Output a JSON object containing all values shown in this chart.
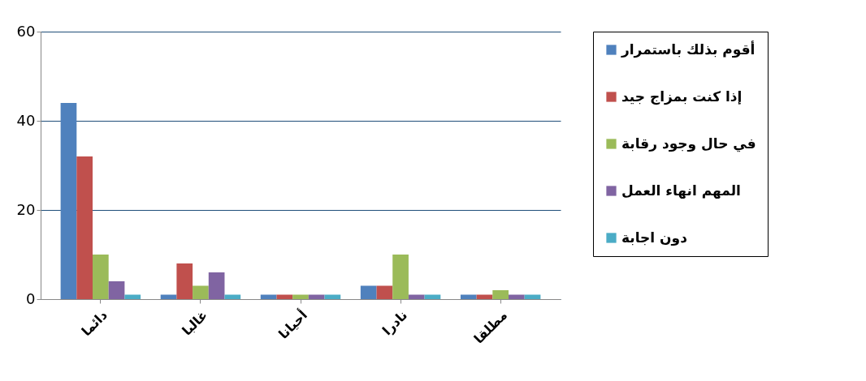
{
  "chart_data": {
    "type": "bar",
    "categories": [
      "دائما",
      "غالبا",
      "أحيانا",
      "نادرا",
      "مطلقا"
    ],
    "series": [
      {
        "name": "أقوم بذلك باستمرار",
        "color": "#4f81bd",
        "values": [
          44,
          1,
          1,
          3,
          1
        ]
      },
      {
        "name": "إذا كنت بمزاج جيد",
        "color": "#c0504d",
        "values": [
          32,
          8,
          1,
          3,
          1
        ]
      },
      {
        "name": "في حال وجود رقابة",
        "color": "#9bbb59",
        "values": [
          10,
          3,
          1,
          10,
          2
        ]
      },
      {
        "name": "المهم انهاء العمل",
        "color": "#8064a2",
        "values": [
          4,
          6,
          1,
          1,
          1
        ]
      },
      {
        "name": "دون اجابة",
        "color": "#4bacc6",
        "values": [
          1,
          1,
          1,
          1,
          1
        ]
      }
    ],
    "ylim": [
      0,
      60
    ],
    "yticks": [
      0,
      20,
      40,
      60
    ],
    "grid": "y",
    "legend": "right"
  }
}
